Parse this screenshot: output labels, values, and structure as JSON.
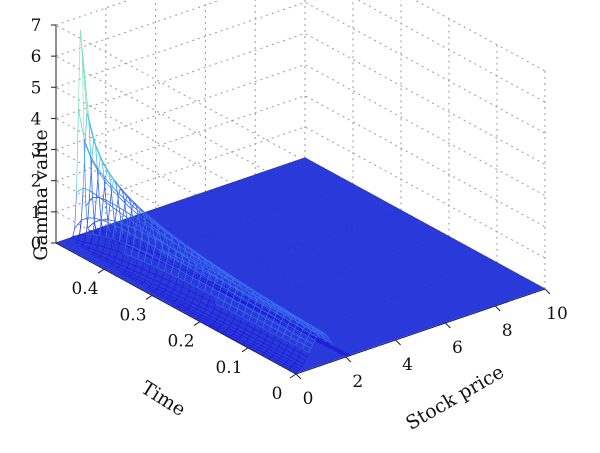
{
  "chart_data": {
    "type": "surface",
    "title": "",
    "xlabel": "Stock price",
    "ylabel": "Time",
    "zlabel": "Gamma value",
    "x_ticks": [
      "0",
      "2",
      "4",
      "6",
      "8",
      "10"
    ],
    "y_ticks": [
      "0",
      "0.1",
      "0.2",
      "0.3",
      "0.4"
    ],
    "z_ticks": [
      "0",
      "1",
      "2",
      "3",
      "4",
      "5",
      "6",
      "7"
    ],
    "xlim": [
      0,
      10
    ],
    "ylim": [
      0,
      0.5
    ],
    "zlim": [
      0,
      7
    ],
    "grid": true,
    "peak": {
      "stock_price": 1,
      "time": 0.5,
      "gamma": 6.8
    },
    "colormap": [
      "#1f1fd6",
      "#3a6cf0",
      "#4fc4e8",
      "#7de0c0",
      "#d6f070"
    ]
  }
}
